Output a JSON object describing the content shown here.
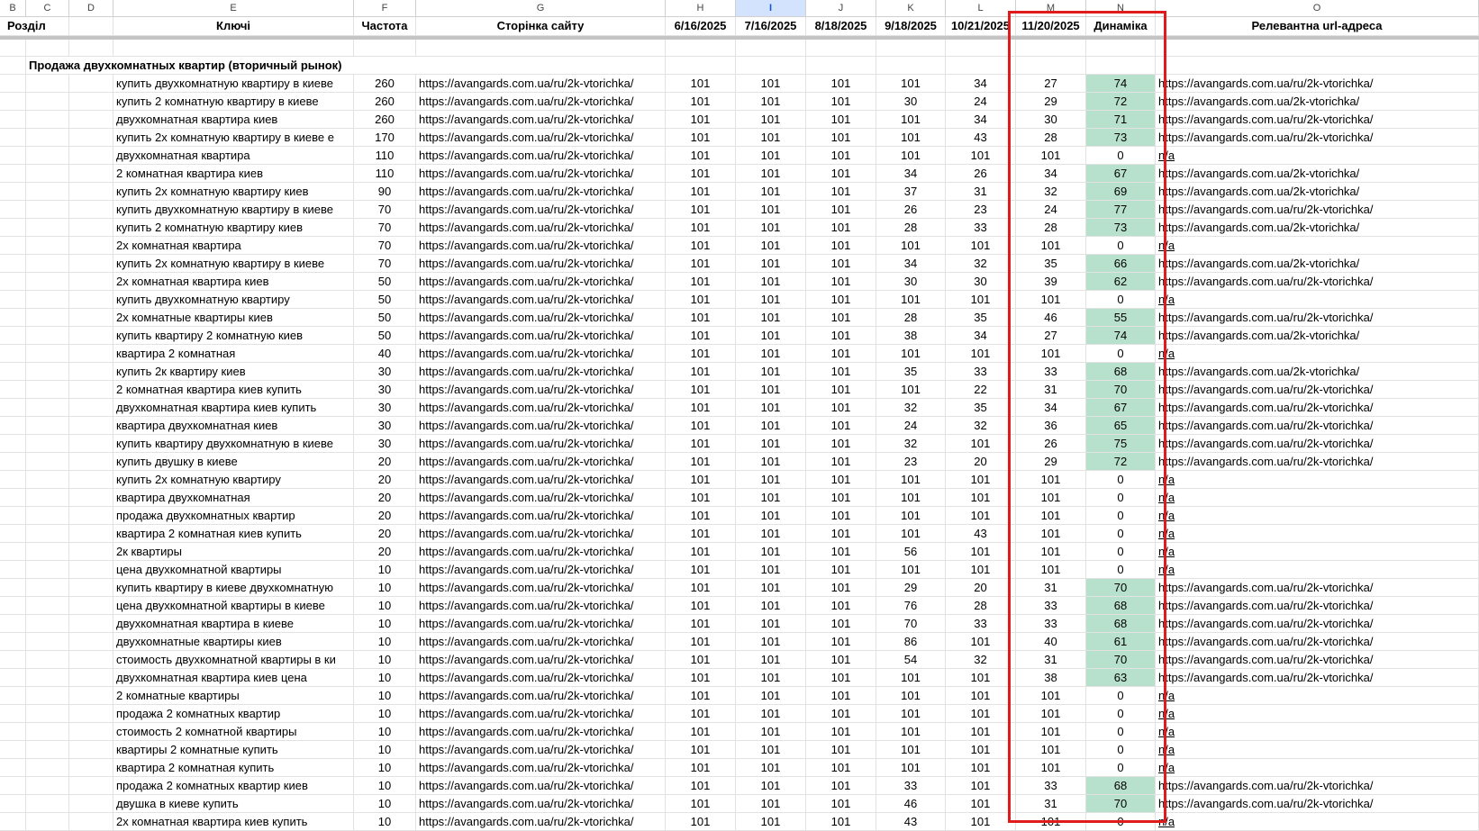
{
  "column_letters": [
    "B",
    "C",
    "D",
    "E",
    "F",
    "G",
    "H",
    "I",
    "J",
    "K",
    "L",
    "M",
    "N",
    "O"
  ],
  "selected_column": "I",
  "headers": {
    "section": "Розділ",
    "keys": "Ключі",
    "frequency": "Частота",
    "site_page": "Сторінка сайту",
    "dates": [
      "6/16/2025",
      "7/16/2025",
      "8/18/2025",
      "9/18/2025",
      "10/21/2025",
      "11/20/2025"
    ],
    "dynamics": "Динаміка",
    "relevant_url": "Релевантна url-адреса"
  },
  "section_title": "Продажа двухкомнатных квартир (вторичный рынок)",
  "site_page_url": "https://avangards.com.ua/ru/2k-vtorichka/",
  "colors": {
    "positive_dynamics": "#b7e1cd",
    "highlight_box": "#e01b1b",
    "link": "#3c6e8f"
  },
  "rows": [
    [
      "купить двухкомнатную квартиру в киеве",
      "260",
      "101",
      "101",
      "101",
      "101",
      "34",
      "27",
      "74",
      "https://avangards.com.ua/ru/2k-vtorichka/"
    ],
    [
      "купить 2 комнатную квартиру в киеве",
      "260",
      "101",
      "101",
      "101",
      "30",
      "24",
      "29",
      "72",
      "https://avangards.com.ua/2k-vtorichka/"
    ],
    [
      "двухкомнатная квартира киев",
      "260",
      "101",
      "101",
      "101",
      "101",
      "34",
      "30",
      "71",
      "https://avangards.com.ua/ru/2k-vtorichka/"
    ],
    [
      "купить 2х комнатную квартиру в киеве е",
      "170",
      "101",
      "101",
      "101",
      "101",
      "43",
      "28",
      "73",
      "https://avangards.com.ua/ru/2k-vtorichka/"
    ],
    [
      "двухкомнатная квартира",
      "110",
      "101",
      "101",
      "101",
      "101",
      "101",
      "101",
      "0",
      "n/a"
    ],
    [
      "2 комнатная квартира киев",
      "110",
      "101",
      "101",
      "101",
      "34",
      "26",
      "34",
      "67",
      "https://avangards.com.ua/2k-vtorichka/"
    ],
    [
      "купить 2х комнатную квартиру киев",
      "90",
      "101",
      "101",
      "101",
      "37",
      "31",
      "32",
      "69",
      "https://avangards.com.ua/2k-vtorichka/"
    ],
    [
      "купить двухкомнатную квартиру в киеве",
      "70",
      "101",
      "101",
      "101",
      "26",
      "23",
      "24",
      "77",
      "https://avangards.com.ua/ru/2k-vtorichka/"
    ],
    [
      "купить 2 комнатную квартиру киев",
      "70",
      "101",
      "101",
      "101",
      "28",
      "33",
      "28",
      "73",
      "https://avangards.com.ua/2k-vtorichka/"
    ],
    [
      "2х комнатная квартира",
      "70",
      "101",
      "101",
      "101",
      "101",
      "101",
      "101",
      "0",
      "n/a"
    ],
    [
      "купить 2х комнатную квартиру в киеве",
      "70",
      "101",
      "101",
      "101",
      "34",
      "32",
      "35",
      "66",
      "https://avangards.com.ua/2k-vtorichka/"
    ],
    [
      "2х комнатная квартира киев",
      "50",
      "101",
      "101",
      "101",
      "30",
      "30",
      "39",
      "62",
      "https://avangards.com.ua/ru/2k-vtorichka/"
    ],
    [
      "купить двухкомнатную квартиру",
      "50",
      "101",
      "101",
      "101",
      "101",
      "101",
      "101",
      "0",
      "n/a"
    ],
    [
      "2х комнатные квартиры киев",
      "50",
      "101",
      "101",
      "101",
      "28",
      "35",
      "46",
      "55",
      "https://avangards.com.ua/ru/2k-vtorichka/"
    ],
    [
      "купить квартиру 2 комнатную киев",
      "50",
      "101",
      "101",
      "101",
      "38",
      "34",
      "27",
      "74",
      "https://avangards.com.ua/2k-vtorichka/"
    ],
    [
      "квартира 2 комнатная",
      "40",
      "101",
      "101",
      "101",
      "101",
      "101",
      "101",
      "0",
      "n/a"
    ],
    [
      "купить 2к квартиру киев",
      "30",
      "101",
      "101",
      "101",
      "35",
      "33",
      "33",
      "68",
      "https://avangards.com.ua/2k-vtorichka/"
    ],
    [
      "2 комнатная квартира киев купить",
      "30",
      "101",
      "101",
      "101",
      "101",
      "22",
      "31",
      "70",
      "https://avangards.com.ua/ru/2k-vtorichka/"
    ],
    [
      "двухкомнатная квартира киев купить",
      "30",
      "101",
      "101",
      "101",
      "32",
      "35",
      "34",
      "67",
      "https://avangards.com.ua/ru/2k-vtorichka/"
    ],
    [
      "квартира двухкомнатная киев",
      "30",
      "101",
      "101",
      "101",
      "24",
      "32",
      "36",
      "65",
      "https://avangards.com.ua/ru/2k-vtorichka/"
    ],
    [
      "купить квартиру двухкомнатную в киеве",
      "30",
      "101",
      "101",
      "101",
      "32",
      "101",
      "26",
      "75",
      "https://avangards.com.ua/ru/2k-vtorichka/"
    ],
    [
      "купить двушку в киеве",
      "20",
      "101",
      "101",
      "101",
      "23",
      "20",
      "29",
      "72",
      "https://avangards.com.ua/ru/2k-vtorichka/"
    ],
    [
      "купить 2х комнатную квартиру",
      "20",
      "101",
      "101",
      "101",
      "101",
      "101",
      "101",
      "0",
      "n/a"
    ],
    [
      "квартира двухкомнатная",
      "20",
      "101",
      "101",
      "101",
      "101",
      "101",
      "101",
      "0",
      "n/a"
    ],
    [
      "продажа двухкомнатных квартир",
      "20",
      "101",
      "101",
      "101",
      "101",
      "101",
      "101",
      "0",
      "n/a"
    ],
    [
      "квартира 2 комнатная киев купить",
      "20",
      "101",
      "101",
      "101",
      "101",
      "43",
      "101",
      "0",
      "n/a"
    ],
    [
      "2к квартиры",
      "20",
      "101",
      "101",
      "101",
      "56",
      "101",
      "101",
      "0",
      "n/a"
    ],
    [
      "цена двухкомнатной квартиры",
      "10",
      "101",
      "101",
      "101",
      "101",
      "101",
      "101",
      "0",
      "n/a"
    ],
    [
      "купить квартиру в киеве двухкомнатную",
      "10",
      "101",
      "101",
      "101",
      "29",
      "20",
      "31",
      "70",
      "https://avangards.com.ua/ru/2k-vtorichka/"
    ],
    [
      "цена двухкомнатной квартиры в киеве",
      "10",
      "101",
      "101",
      "101",
      "76",
      "28",
      "33",
      "68",
      "https://avangards.com.ua/ru/2k-vtorichka/"
    ],
    [
      "двухкомнатная квартира в киеве",
      "10",
      "101",
      "101",
      "101",
      "70",
      "33",
      "33",
      "68",
      "https://avangards.com.ua/ru/2k-vtorichka/"
    ],
    [
      "двухкомнатные квартиры киев",
      "10",
      "101",
      "101",
      "101",
      "86",
      "101",
      "40",
      "61",
      "https://avangards.com.ua/ru/2k-vtorichka/"
    ],
    [
      "стоимость двухкомнатной квартиры в ки",
      "10",
      "101",
      "101",
      "101",
      "54",
      "32",
      "31",
      "70",
      "https://avangards.com.ua/ru/2k-vtorichka/"
    ],
    [
      "двухкомнатная квартира киев цена",
      "10",
      "101",
      "101",
      "101",
      "101",
      "101",
      "38",
      "63",
      "https://avangards.com.ua/ru/2k-vtorichka/"
    ],
    [
      "2 комнатные квартиры",
      "10",
      "101",
      "101",
      "101",
      "101",
      "101",
      "101",
      "0",
      "n/a"
    ],
    [
      "продажа 2 комнатных квартир",
      "10",
      "101",
      "101",
      "101",
      "101",
      "101",
      "101",
      "0",
      "n/a"
    ],
    [
      "стоимость 2 комнатной квартиры",
      "10",
      "101",
      "101",
      "101",
      "101",
      "101",
      "101",
      "0",
      "n/a"
    ],
    [
      "квартиры 2 комнатные купить",
      "10",
      "101",
      "101",
      "101",
      "101",
      "101",
      "101",
      "0",
      "n/a"
    ],
    [
      "квартира 2 комнатная купить",
      "10",
      "101",
      "101",
      "101",
      "101",
      "101",
      "101",
      "0",
      "n/a"
    ],
    [
      "продажа 2 комнатных квартир киев",
      "10",
      "101",
      "101",
      "101",
      "33",
      "101",
      "33",
      "68",
      "https://avangards.com.ua/ru/2k-vtorichka/"
    ],
    [
      "двушка в киеве купить",
      "10",
      "101",
      "101",
      "101",
      "46",
      "101",
      "31",
      "70",
      "https://avangards.com.ua/ru/2k-vtorichka/"
    ],
    [
      "2х комнатная квартира киев купить",
      "10",
      "101",
      "101",
      "101",
      "43",
      "101",
      "101",
      "0",
      "n/a"
    ]
  ]
}
